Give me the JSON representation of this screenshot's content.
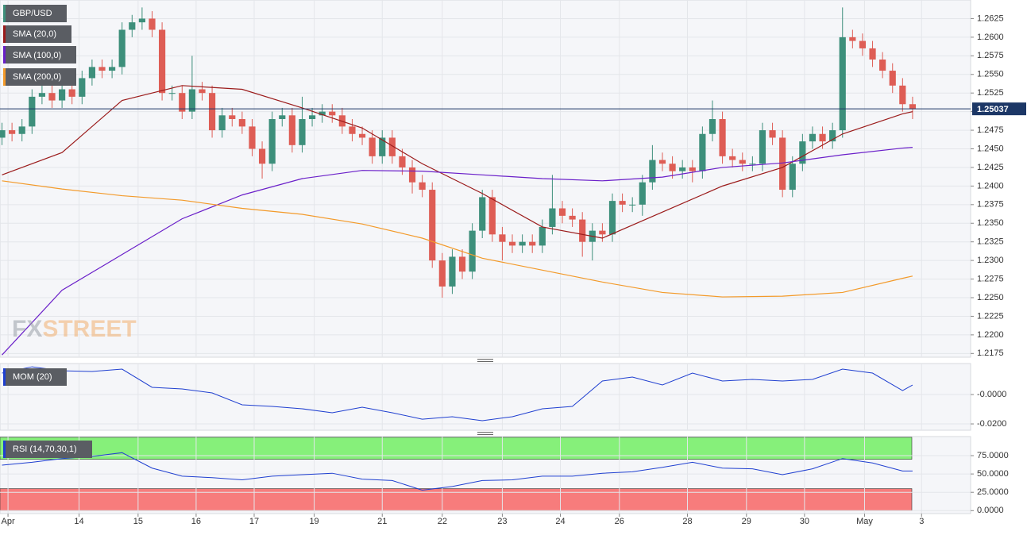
{
  "chart_data": [
    {
      "type": "candlestick",
      "title": "GBP/USD",
      "up_color": "#3d8f7b",
      "down_color": "#de5d55",
      "xlim": [
        -0.2,
        96.8
      ],
      "ylim": [
        1.217,
        1.265
      ],
      "yticks": [
        1.2175,
        {
          "value": 1.22,
          "label": "1.2200"
        },
        1.2225,
        {
          "value": 1.225,
          "label": "1.2250"
        },
        1.2275,
        {
          "value": 1.23,
          "label": "1.2300"
        },
        1.2325,
        {
          "value": 1.235,
          "label": "1.2350"
        },
        1.2375,
        {
          "value": 1.24,
          "label": "1.2400"
        },
        1.2425,
        {
          "value": 1.245,
          "label": "1.2450"
        },
        1.2475,
        {
          "value": 1.25,
          "label": "1.2500"
        },
        1.2525,
        {
          "value": 1.255,
          "label": "1.2550"
        },
        1.2575,
        {
          "value": 1.26,
          "label": "1.2600"
        },
        1.2625
      ],
      "grid": true,
      "last_price": 1.25037,
      "last_color": "#1c3766",
      "watermark": [
        "FX",
        "STREET"
      ],
      "open": [
        1.2465,
        1.2475,
        1.247,
        1.248,
        1.252,
        1.2525,
        1.2515,
        1.253,
        1.252,
        1.2545,
        1.256,
        1.2555,
        1.256,
        1.261,
        1.262,
        1.2625,
        1.261,
        1.2525,
        1.2525,
        1.25,
        1.253,
        1.2525,
        1.2475,
        1.2495,
        1.249,
        1.248,
        1.245,
        1.243,
        1.249,
        1.2495,
        1.2455,
        1.249,
        1.2495,
        1.25,
        1.2495,
        1.248,
        1.247,
        1.2465,
        1.244,
        1.2465,
        1.244,
        1.2425,
        1.2405,
        1.2395,
        1.23,
        1.2265,
        1.2305,
        1.2285,
        1.234,
        1.2385,
        1.2335,
        1.2325,
        1.232,
        1.2325,
        1.232,
        1.2345,
        1.237,
        1.236,
        1.2355,
        1.2325,
        1.234,
        1.2335,
        1.238,
        1.2375,
        1.2375,
        1.2405,
        1.2435,
        1.243,
        1.242,
        1.2425,
        1.242,
        1.247,
        1.249,
        1.244,
        1.2435,
        1.243,
        1.243,
        1.2475,
        1.2465,
        1.2395,
        1.243,
        1.246,
        1.247,
        1.246,
        1.2475,
        1.26,
        1.2595,
        1.2585,
        1.257,
        1.2555,
        1.2535,
        1.251
      ],
      "high": [
        1.2485,
        1.2485,
        1.249,
        1.253,
        1.2535,
        1.2535,
        1.254,
        1.254,
        1.2555,
        1.257,
        1.257,
        1.257,
        1.262,
        1.263,
        1.264,
        1.2635,
        1.262,
        1.2535,
        1.2535,
        1.2575,
        1.254,
        1.2535,
        1.2505,
        1.2505,
        1.25,
        1.249,
        1.246,
        1.25,
        1.2505,
        1.2505,
        1.252,
        1.2505,
        1.251,
        1.251,
        1.2505,
        1.249,
        1.248,
        1.2475,
        1.2475,
        1.2475,
        1.245,
        1.2435,
        1.2415,
        1.2405,
        1.231,
        1.2315,
        1.2315,
        1.235,
        1.2395,
        1.2395,
        1.2345,
        1.2335,
        1.2335,
        1.2335,
        1.2355,
        1.2415,
        1.238,
        1.237,
        1.2365,
        1.235,
        1.235,
        1.239,
        1.239,
        1.2385,
        1.2415,
        1.2455,
        1.2445,
        1.244,
        1.2435,
        1.2435,
        1.248,
        1.2515,
        1.25,
        1.245,
        1.2445,
        1.244,
        1.2485,
        1.2485,
        1.2475,
        1.244,
        1.247,
        1.248,
        1.248,
        1.2485,
        1.264,
        1.261,
        1.2605,
        1.2595,
        1.258,
        1.2565,
        1.2545,
        1.252
      ],
      "low": [
        1.2455,
        1.246,
        1.246,
        1.247,
        1.251,
        1.2505,
        1.2505,
        1.251,
        1.251,
        1.2535,
        1.2545,
        1.2545,
        1.255,
        1.26,
        1.261,
        1.26,
        1.2515,
        1.2515,
        1.249,
        1.249,
        1.2515,
        1.2465,
        1.2465,
        1.248,
        1.247,
        1.244,
        1.241,
        1.242,
        1.248,
        1.2445,
        1.2445,
        1.248,
        1.2485,
        1.2485,
        1.247,
        1.246,
        1.2455,
        1.243,
        1.243,
        1.243,
        1.2415,
        1.239,
        1.2385,
        1.229,
        1.225,
        1.2255,
        1.2275,
        1.2275,
        1.233,
        1.2325,
        1.23,
        1.231,
        1.231,
        1.231,
        1.231,
        1.2335,
        1.235,
        1.2345,
        1.2305,
        1.23,
        1.2325,
        1.2325,
        1.2365,
        1.2365,
        1.236,
        1.2395,
        1.242,
        1.241,
        1.241,
        1.2405,
        1.241,
        1.246,
        1.243,
        1.2425,
        1.242,
        1.242,
        1.242,
        1.2455,
        1.2385,
        1.2385,
        1.242,
        1.245,
        1.245,
        1.245,
        1.2465,
        1.2585,
        1.2575,
        1.256,
        1.2545,
        1.2525,
        1.25,
        1.249
      ],
      "close": [
        1.2475,
        1.247,
        1.248,
        1.252,
        1.2525,
        1.2515,
        1.253,
        1.252,
        1.2545,
        1.256,
        1.2555,
        1.256,
        1.261,
        1.262,
        1.2625,
        1.261,
        1.2525,
        1.2525,
        1.25,
        1.253,
        1.2525,
        1.2475,
        1.2495,
        1.249,
        1.248,
        1.245,
        1.243,
        1.249,
        1.2495,
        1.2455,
        1.249,
        1.2495,
        1.25,
        1.2495,
        1.248,
        1.247,
        1.2465,
        1.244,
        1.2465,
        1.244,
        1.2425,
        1.2405,
        1.2395,
        1.23,
        1.2265,
        1.2305,
        1.2285,
        1.234,
        1.2385,
        1.2335,
        1.2325,
        1.232,
        1.2325,
        1.232,
        1.2345,
        1.237,
        1.236,
        1.2355,
        1.2325,
        1.234,
        1.2335,
        1.238,
        1.2375,
        1.2375,
        1.2405,
        1.2435,
        1.243,
        1.242,
        1.2425,
        1.242,
        1.247,
        1.249,
        1.244,
        1.2435,
        1.243,
        1.243,
        1.2475,
        1.2465,
        1.2395,
        1.243,
        1.246,
        1.247,
        1.246,
        1.2475,
        1.26,
        1.2595,
        1.2585,
        1.257,
        1.2555,
        1.2535,
        1.251,
        1.25037
      ],
      "series": [
        {
          "name": "SMA (20,0)",
          "color": "#9b1b1b",
          "x": [
            0,
            6,
            12,
            18,
            24,
            30,
            36,
            42,
            48,
            54,
            60,
            66,
            72,
            78,
            84,
            90,
            91
          ],
          "values": [
            1.2415,
            1.2445,
            1.2515,
            1.2535,
            1.253,
            1.2505,
            1.2478,
            1.243,
            1.239,
            1.2345,
            1.233,
            1.2365,
            1.24,
            1.2425,
            1.247,
            1.2497,
            1.25
          ]
        },
        {
          "name": "SMA (100,0)",
          "color": "#6a1fc9",
          "x": [
            0,
            6,
            12,
            18,
            24,
            30,
            36,
            42,
            48,
            54,
            60,
            66,
            72,
            78,
            84,
            90,
            91
          ],
          "values": [
            1.2173,
            1.226,
            1.2308,
            1.2356,
            1.2388,
            1.241,
            1.2421,
            1.242,
            1.2415,
            1.241,
            1.2407,
            1.2412,
            1.2425,
            1.2431,
            1.2442,
            1.2451,
            1.2452
          ]
        },
        {
          "name": "SMA (200,0)",
          "color": "#f39a2a",
          "x": [
            0,
            6,
            12,
            18,
            24,
            30,
            36,
            42,
            48,
            54,
            60,
            66,
            72,
            78,
            84,
            90,
            91
          ],
          "values": [
            1.2407,
            1.2396,
            1.2387,
            1.2381,
            1.237,
            1.2362,
            1.2349,
            1.233,
            1.2303,
            1.2287,
            1.2271,
            1.2257,
            1.2251,
            1.2252,
            1.2257,
            1.2276,
            1.2279
          ]
        }
      ]
    },
    {
      "type": "line",
      "title": "MOM (20)",
      "color": "#1f3fd0",
      "xlim": [
        -0.2,
        96.8
      ],
      "ylim": [
        -0.0243,
        0.0211
      ],
      "yticks": [
        {
          "value": 0,
          "label": "-0.0000"
        },
        {
          "value": -0.02,
          "label": "-0.0200"
        }
      ],
      "x": [
        0,
        3,
        6,
        9,
        12,
        15,
        18,
        21,
        24,
        27,
        30,
        33,
        36,
        39,
        42,
        45,
        48,
        51,
        54,
        57,
        60,
        63,
        66,
        69,
        72,
        75,
        78,
        81,
        84,
        87,
        90,
        91
      ],
      "values": [
        0.0146,
        0.0189,
        0.0162,
        0.0157,
        0.0173,
        0.0049,
        0.0038,
        0.0011,
        -0.007,
        -0.0081,
        -0.0097,
        -0.0124,
        -0.0086,
        -0.0124,
        -0.0168,
        -0.0151,
        -0.0178,
        -0.0151,
        -0.0097,
        -0.0081,
        0.0092,
        0.0119,
        0.0065,
        0.0146,
        0.0092,
        0.0103,
        0.0092,
        0.0103,
        0.0173,
        0.0146,
        0.0027,
        0.0065
      ]
    },
    {
      "type": "line",
      "title": "RSI (14,70,30,1)",
      "color": "#1f3fd0",
      "xlim": [
        -0.2,
        96.8
      ],
      "ylim": [
        -4,
        101
      ],
      "yticks": [
        {
          "value": 75,
          "label": "75.0000"
        },
        {
          "value": 50,
          "label": "50.0000"
        },
        {
          "value": 25,
          "label": "25.0000"
        },
        {
          "value": 0,
          "label": "0.0000"
        }
      ],
      "bands": [
        {
          "from": 70,
          "to": 100,
          "color": "#86f07a"
        },
        {
          "from": 0,
          "to": 30,
          "color": "#f77c7c"
        }
      ],
      "x": [
        0,
        3,
        6,
        9,
        12,
        15,
        18,
        21,
        24,
        27,
        30,
        33,
        36,
        39,
        42,
        45,
        48,
        51,
        54,
        57,
        60,
        63,
        66,
        69,
        72,
        75,
        78,
        81,
        84,
        87,
        90,
        91
      ],
      "values": [
        62,
        66,
        71,
        74,
        79,
        58,
        47,
        45,
        42,
        47,
        49,
        51,
        43,
        41,
        28,
        33,
        41,
        42,
        47,
        47,
        51,
        53,
        59,
        66,
        58,
        57,
        49,
        57,
        71,
        65,
        54,
        54
      ],
      "xticks": [
        {
          "value": 0.6,
          "label": "Apr"
        },
        {
          "value": 7.7,
          "label": "14"
        },
        {
          "value": 13.6,
          "label": "15"
        },
        {
          "value": 19.4,
          "label": "16"
        },
        {
          "value": 25.2,
          "label": "17"
        },
        {
          "value": 31.2,
          "label": "19"
        },
        {
          "value": 38,
          "label": "21"
        },
        {
          "value": 44,
          "label": "22"
        },
        {
          "value": 50,
          "label": "23"
        },
        {
          "value": 55.8,
          "label": "24"
        },
        {
          "value": 61.7,
          "label": "26"
        },
        {
          "value": 68.5,
          "label": "28"
        },
        {
          "value": 74.4,
          "label": "29"
        },
        {
          "value": 80.2,
          "label": "30"
        },
        {
          "value": 86.2,
          "label": "May"
        },
        {
          "value": 91.9,
          "label": "3"
        }
      ]
    }
  ]
}
